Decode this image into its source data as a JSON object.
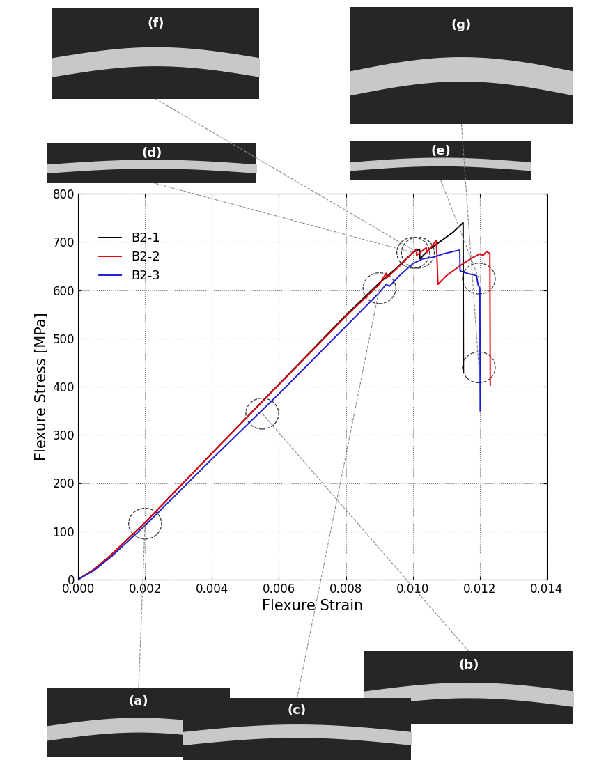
{
  "chart_data": {
    "type": "line",
    "x_label": "Flexure Strain",
    "y_label": "Flexure Stress [MPa]",
    "xlim": [
      0,
      0.014
    ],
    "ylim": [
      0,
      800
    ],
    "xticks": [
      {
        "value": 0,
        "label": "0.000"
      },
      {
        "value": 0.002,
        "label": "0.002"
      },
      {
        "value": 0.004,
        "label": "0.004"
      },
      {
        "value": 0.006,
        "label": "0.006"
      },
      {
        "value": 0.008,
        "label": "0.008"
      },
      {
        "value": 0.01,
        "label": "0.010"
      },
      {
        "value": 0.012,
        "label": "0.012"
      },
      {
        "value": 0.014,
        "label": "0.014"
      }
    ],
    "yticks": [
      0,
      100,
      200,
      300,
      400,
      500,
      600,
      700,
      800
    ],
    "grid": true,
    "legend": "upper left",
    "annotations": [
      "(a)",
      "(b)",
      "(c)",
      "(d)",
      "(e)",
      "(f)",
      "(g)"
    ],
    "series": [
      {
        "name": "B2-1",
        "color": "#000000",
        "x": [
          0,
          0.0005,
          0.001,
          0.002,
          0.004,
          0.006,
          0.008,
          0.009,
          0.0095,
          0.01,
          0.0102,
          0.01021,
          0.0105,
          0.0108,
          0.0112,
          0.0115,
          0.01151
        ],
        "values": [
          0,
          22,
          52,
          118,
          262,
          405,
          548,
          615,
          645,
          678,
          685,
          665,
          685,
          700,
          720,
          740,
          430
        ]
      },
      {
        "name": "B2-2",
        "color": "#e8000b",
        "x": [
          0,
          0.0005,
          0.001,
          0.002,
          0.004,
          0.006,
          0.008,
          0.009,
          0.0092,
          0.00921,
          0.0096,
          0.0101,
          0.01011,
          0.0104,
          0.01042,
          0.0107,
          0.01075,
          0.011,
          0.0115,
          0.0118,
          0.012,
          0.0121,
          0.0122,
          0.0123,
          0.01231
        ],
        "values": [
          0,
          22,
          52,
          118,
          262,
          404,
          546,
          612,
          635,
          625,
          650,
          685,
          672,
          688,
          678,
          703,
          612,
          630,
          655,
          668,
          675,
          672,
          680,
          676,
          403
        ]
      },
      {
        "name": "B2-3",
        "color": "#1f1fd0",
        "x": [
          0,
          0.0005,
          0.001,
          0.002,
          0.004,
          0.006,
          0.008,
          0.009,
          0.0092,
          0.0093,
          0.0096,
          0.01,
          0.0103,
          0.0106,
          0.0109,
          0.0112,
          0.0114,
          0.01141,
          0.0116,
          0.0118,
          0.0119,
          0.01195,
          0.012,
          0.01201
        ],
        "values": [
          0,
          20,
          48,
          112,
          250,
          385,
          525,
          595,
          612,
          608,
          630,
          655,
          665,
          668,
          675,
          680,
          683,
          640,
          635,
          632,
          630,
          610,
          605,
          350
        ]
      }
    ]
  }
}
